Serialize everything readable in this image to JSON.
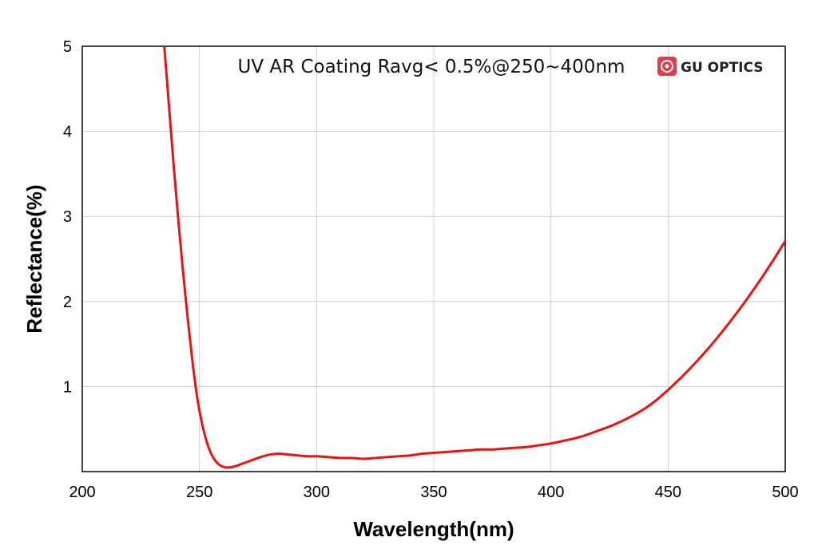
{
  "brand": {
    "name": "GU OPTICS",
    "logo_color": "#e03c4a"
  },
  "chart_data": {
    "type": "line",
    "title": "UV AR Coating Ravg< 0.5%@250~400nm",
    "xlabel": "Wavelength(nm)",
    "ylabel": "Reflectance(%)",
    "xlim": [
      200,
      500
    ],
    "ylim": [
      0,
      5
    ],
    "xticks": [
      200,
      250,
      300,
      350,
      400,
      450,
      500
    ],
    "yticks": [
      1,
      2,
      3,
      4,
      5
    ],
    "grid": true,
    "series": [
      {
        "color": "#ee1111",
        "x": [
          235,
          237,
          239,
          241,
          243,
          245,
          247,
          249,
          251,
          253,
          255,
          257,
          259,
          261,
          263,
          265,
          267,
          270,
          273,
          276,
          280,
          284,
          288,
          292,
          296,
          300,
          305,
          310,
          315,
          320,
          325,
          330,
          335,
          340,
          345,
          350,
          355,
          360,
          365,
          370,
          375,
          380,
          385,
          390,
          395,
          400,
          405,
          410,
          415,
          420,
          425,
          430,
          435,
          440,
          445,
          450,
          455,
          460,
          465,
          470,
          475,
          480,
          485,
          490,
          495,
          500
        ],
        "y": [
          5.0,
          4.3,
          3.6,
          2.95,
          2.35,
          1.8,
          1.3,
          0.88,
          0.58,
          0.36,
          0.21,
          0.12,
          0.07,
          0.05,
          0.05,
          0.06,
          0.08,
          0.11,
          0.14,
          0.17,
          0.2,
          0.21,
          0.2,
          0.19,
          0.18,
          0.18,
          0.17,
          0.16,
          0.16,
          0.15,
          0.16,
          0.17,
          0.18,
          0.19,
          0.21,
          0.22,
          0.23,
          0.24,
          0.25,
          0.26,
          0.26,
          0.27,
          0.28,
          0.29,
          0.31,
          0.33,
          0.36,
          0.39,
          0.43,
          0.48,
          0.53,
          0.59,
          0.66,
          0.74,
          0.84,
          0.96,
          1.09,
          1.23,
          1.38,
          1.54,
          1.71,
          1.89,
          2.08,
          2.28,
          2.49,
          2.71
        ]
      }
    ]
  }
}
